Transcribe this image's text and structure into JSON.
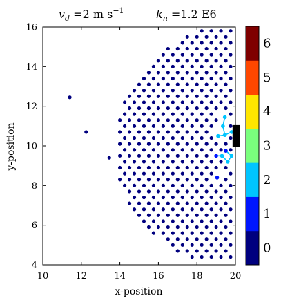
{
  "title": {
    "left_prefix": "v",
    "left_sub": "d",
    "left_value": " =2 m s",
    "left_exp": "−1",
    "right_prefix": "k",
    "right_sub": "n",
    "right_value": " =1.2 E6"
  },
  "chart_data": {
    "type": "scatter",
    "xlabel": "x-position",
    "ylabel": "y-position",
    "xlim": [
      10,
      20
    ],
    "ylim": [
      4,
      16
    ],
    "xticks": [
      10,
      12,
      14,
      16,
      18,
      20
    ],
    "yticks": [
      4,
      6,
      8,
      10,
      12,
      14,
      16
    ],
    "grid": false,
    "obstacle": {
      "x0": 19.85,
      "x1": 20.25,
      "y0": 9.95,
      "y1": 11.05,
      "color": "#000000"
    },
    "colorbar": {
      "levels": [
        "0",
        "1",
        "2",
        "3",
        "4",
        "5",
        "6"
      ],
      "colors": [
        "#00007f",
        "#0016ff",
        "#00c5ff",
        "#7aff7d",
        "#ffe600",
        "#ff4700",
        "#7f0000"
      ]
    },
    "stray_points": [
      [
        11.4,
        12.45
      ],
      [
        12.25,
        10.7
      ],
      [
        13.45,
        9.4
      ]
    ],
    "lattice": {
      "dx": 0.5,
      "dy": 0.3,
      "front_x": 19.75,
      "center_y": 10.0,
      "radius": 6.0,
      "ymin": 4.4,
      "ymax": 15.95
    },
    "highlighted": [
      {
        "x": 19.45,
        "y": 11.45,
        "level": 2
      },
      {
        "x": 19.35,
        "y": 11.0,
        "level": 2
      },
      {
        "x": 19.45,
        "y": 10.55,
        "level": 2
      },
      {
        "x": 19.8,
        "y": 10.7,
        "level": 2
      },
      {
        "x": 19.1,
        "y": 10.5,
        "level": 2
      },
      {
        "x": 19.3,
        "y": 9.5,
        "level": 2
      },
      {
        "x": 19.6,
        "y": 9.2,
        "level": 2
      },
      {
        "x": 19.8,
        "y": 9.5,
        "level": 2
      },
      {
        "x": 19.5,
        "y": 9.75,
        "level": 1
      },
      {
        "x": 19.0,
        "y": 9.5,
        "level": 1
      },
      {
        "x": 19.05,
        "y": 8.4,
        "level": 1
      }
    ],
    "bonds": [
      [
        [
          19.45,
          11.45
        ],
        [
          19.35,
          11.0
        ]
      ],
      [
        [
          19.35,
          11.0
        ],
        [
          19.45,
          10.55
        ]
      ],
      [
        [
          19.45,
          10.55
        ],
        [
          19.8,
          10.7
        ]
      ],
      [
        [
          19.45,
          10.55
        ],
        [
          19.1,
          10.5
        ]
      ],
      [
        [
          19.0,
          9.5
        ],
        [
          19.3,
          9.5
        ]
      ],
      [
        [
          19.3,
          9.5
        ],
        [
          19.6,
          9.2
        ]
      ],
      [
        [
          19.6,
          9.2
        ],
        [
          19.8,
          9.5
        ]
      ],
      [
        [
          19.5,
          9.75
        ],
        [
          19.8,
          9.5
        ]
      ]
    ]
  }
}
